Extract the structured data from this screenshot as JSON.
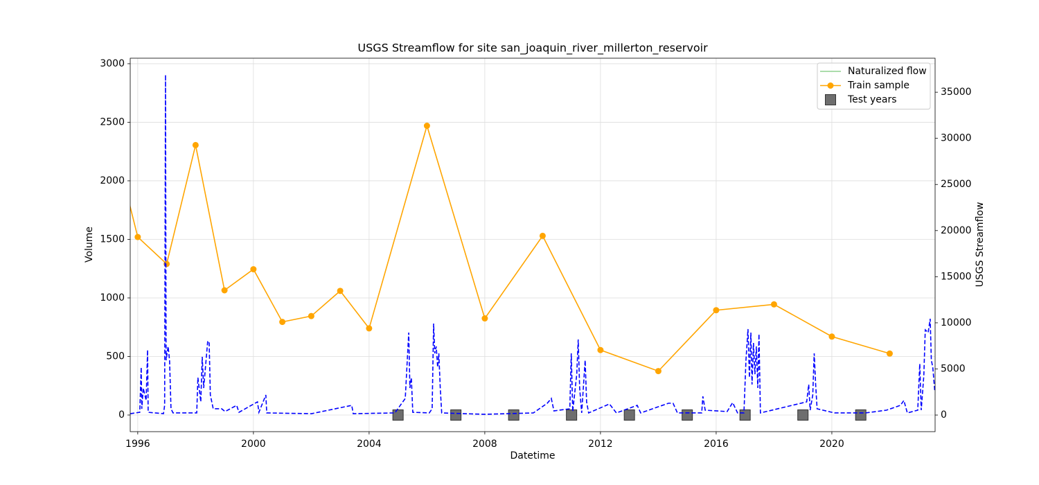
{
  "chart_data": {
    "type": "line",
    "title": "USGS Streamflow for site san_joaquin_river_millerton_reservoir",
    "xlabel": "Datetime",
    "ylabel": "Volume",
    "y2label": "USGS Streamflow",
    "xlim": [
      1995.74,
      2023.57
    ],
    "ylim": [
      -142,
      3047
    ],
    "y2lim": [
      -1800,
      38690
    ],
    "xticks": [
      1996,
      2000,
      2004,
      2008,
      2012,
      2016,
      2020
    ],
    "yticks": [
      0,
      500,
      1000,
      1500,
      2000,
      2500,
      3000
    ],
    "y2ticks": [
      0,
      5000,
      10000,
      15000,
      20000,
      25000,
      30000,
      35000
    ],
    "grid": true,
    "legend": "upper right",
    "series": [
      {
        "name": "Naturalized flow",
        "color": "#8fd18f",
        "x": [],
        "values": []
      },
      {
        "name": "Train sample",
        "color": "#ffa500",
        "marker": "circle",
        "x": [
          1995,
          1996,
          1997,
          1998,
          1999,
          2000,
          2001,
          2002,
          2003,
          2004,
          2006,
          2008,
          2010,
          2012,
          2014,
          2016,
          2018,
          2020,
          2022
        ],
        "values": [
          2510,
          1520,
          1290,
          2305,
          1065,
          1245,
          795,
          845,
          1060,
          740,
          2470,
          825,
          1530,
          555,
          375,
          895,
          945,
          670,
          525
        ]
      },
      {
        "name": "Test years",
        "color": "#666666",
        "marker": "square",
        "line": false,
        "x": [
          2005,
          2007,
          2009,
          2011,
          2013,
          2015,
          2017,
          2019,
          2021
        ],
        "values": [
          0,
          0,
          0,
          0,
          0,
          0,
          0,
          0,
          0
        ]
      },
      {
        "color": "#0000ff",
        "axis": "y2",
        "dash": true,
        "x": [
          1995.74,
          1996.07,
          1996.12,
          1996.14,
          1996.19,
          1996.29,
          1996.34,
          1996.36,
          1996.89,
          1996.93,
          1996.96,
          1996.98,
          1997.05,
          1997.1,
          1997.15,
          1997.22,
          1998.04,
          1998.08,
          1998.18,
          1998.23,
          1998.28,
          1998.42,
          1998.47,
          1998.51,
          1998.61,
          1998.9,
          1999.02,
          1999.42,
          1999.5,
          2000.14,
          2000.19,
          2000.43,
          2000.46,
          2002.01,
          2003.4,
          2003.45,
          2004.89,
          2005.25,
          2005.37,
          2005.41,
          2005.46,
          2005.51,
          2006.08,
          2006.18,
          2006.23,
          2006.27,
          2006.32,
          2006.37,
          2006.41,
          2006.46,
          2006.51,
          2008.0,
          2009.68,
          2010.16,
          2010.3,
          2010.39,
          2010.94,
          2010.99,
          2011.04,
          2011.18,
          2011.23,
          2011.28,
          2011.35,
          2011.47,
          2011.52,
          2011.59,
          2012.31,
          2012.55,
          2013.27,
          2013.39,
          2014.35,
          2014.51,
          2014.66,
          2015.5,
          2015.54,
          2015.62,
          2016.38,
          2016.57,
          2016.74,
          2016.96,
          2017.03,
          2017.1,
          2017.15,
          2017.2,
          2017.24,
          2017.29,
          2017.34,
          2017.39,
          2017.44,
          2017.48,
          2017.53,
          2019.13,
          2019.2,
          2019.25,
          2019.34,
          2019.39,
          2019.44,
          2019.49,
          2020.09,
          2021.17,
          2021.89,
          2022.37,
          2022.49,
          2022.61,
          2022.97,
          2023.04,
          2023.09,
          2023.18,
          2023.23,
          2023.33,
          2023.4,
          2023.44,
          2023.49,
          2023.56
        ],
        "values": [
          150,
          300,
          5180,
          680,
          2930,
          1580,
          7060,
          300,
          150,
          1050,
          36890,
          5940,
          7440,
          5940,
          680,
          230,
          230,
          4060,
          1430,
          6310,
          2930,
          8040,
          7810,
          2180,
          680,
          680,
          380,
          1050,
          300,
          1430,
          300,
          2180,
          230,
          150,
          1050,
          150,
          230,
          1800,
          8940,
          2930,
          4060,
          300,
          230,
          680,
          9920,
          6690,
          7440,
          5180,
          6690,
          2930,
          230,
          80,
          230,
          1280,
          1800,
          450,
          680,
          6690,
          380,
          4430,
          8190,
          2930,
          230,
          5940,
          1430,
          230,
          1200,
          230,
          1050,
          230,
          1280,
          1280,
          230,
          230,
          2030,
          530,
          380,
          1350,
          230,
          230,
          5940,
          9320,
          4060,
          8940,
          3310,
          7810,
          4430,
          7440,
          2930,
          8790,
          230,
          1430,
          3310,
          530,
          2180,
          6690,
          3310,
          680,
          230,
          230,
          530,
          1050,
          1580,
          230,
          530,
          5560,
          530,
          4280,
          9240,
          8940,
          10440,
          5940,
          5180,
          2550
        ]
      }
    ]
  }
}
